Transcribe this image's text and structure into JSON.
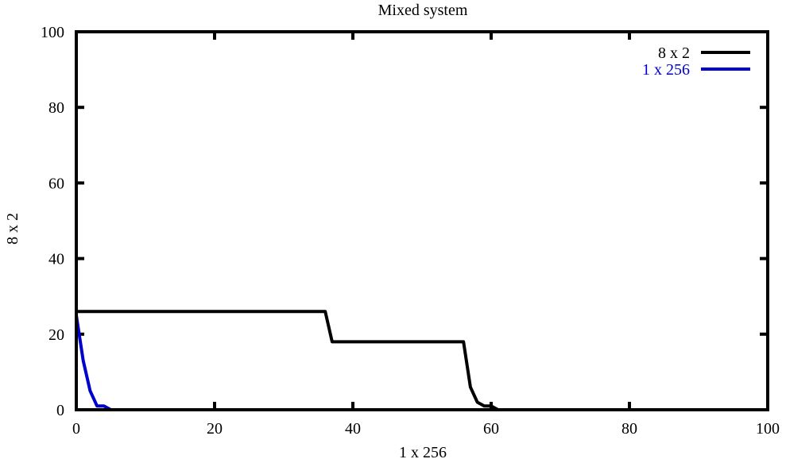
{
  "chart_data": {
    "type": "line",
    "title": "Mixed system",
    "xlabel": "1 x 256",
    "ylabel": "8 x 2",
    "xlim": [
      0,
      100
    ],
    "ylim": [
      0,
      100
    ],
    "xticks": [
      0,
      20,
      40,
      60,
      80,
      100
    ],
    "yticks": [
      0,
      20,
      40,
      60,
      80,
      100
    ],
    "grid": false,
    "legend_position": "top-right",
    "series": [
      {
        "name": "8 x 2",
        "color": "#000000",
        "points": [
          [
            0,
            26
          ],
          [
            36,
            26
          ],
          [
            37,
            18
          ],
          [
            56,
            18
          ],
          [
            57,
            6
          ],
          [
            58,
            2
          ],
          [
            59,
            1
          ],
          [
            60,
            1
          ],
          [
            61,
            0
          ],
          [
            100,
            0
          ]
        ]
      },
      {
        "name": "1 x 256",
        "color": "#0000cc",
        "points": [
          [
            0,
            25
          ],
          [
            1,
            13
          ],
          [
            2,
            5
          ],
          [
            3,
            1
          ],
          [
            4,
            1
          ],
          [
            5,
            0
          ],
          [
            100,
            0
          ]
        ]
      }
    ]
  }
}
